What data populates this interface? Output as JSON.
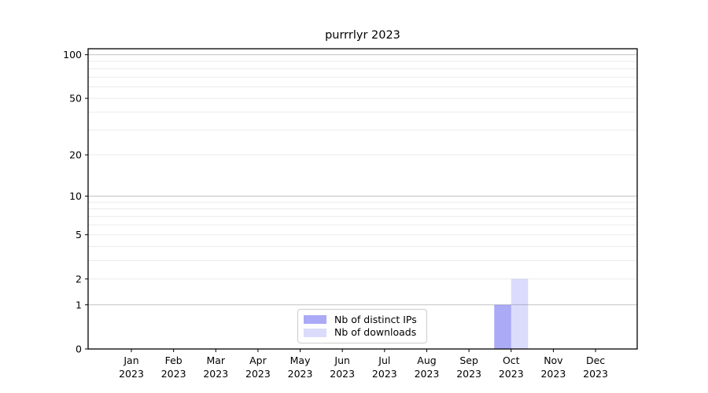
{
  "chart_data": {
    "type": "bar",
    "title": "purrrlyr 2023",
    "scale": "log1p",
    "categories": [
      "Jan",
      "Feb",
      "Mar",
      "Apr",
      "May",
      "Jun",
      "Jul",
      "Aug",
      "Sep",
      "Oct",
      "Nov",
      "Dec"
    ],
    "year_label": "2023",
    "series": [
      {
        "name": "Nb of distinct IPs",
        "color": "rgba(85,85,240,0.5)",
        "values": [
          0,
          0,
          0,
          0,
          0,
          0,
          0,
          0,
          0,
          1,
          0,
          0
        ]
      },
      {
        "name": "Nb of downloads",
        "color": "rgba(85,85,240,0.21)",
        "values": [
          0,
          0,
          0,
          0,
          0,
          0,
          0,
          0,
          0,
          2,
          0,
          0
        ]
      }
    ],
    "y_ticks": [
      0,
      1,
      2,
      5,
      10,
      20,
      50,
      100
    ],
    "ylim": [
      0,
      110
    ],
    "grid": "horizontal",
    "grid_major_values": [
      1,
      10,
      100
    ],
    "grid_minor_values": [
      2,
      3,
      4,
      5,
      6,
      7,
      8,
      9,
      20,
      30,
      40,
      50,
      60,
      70,
      80,
      90
    ],
    "grid_major_color": "#c3c3c3",
    "grid_minor_color": "#ebebeb",
    "axis_color": "#000000",
    "legend_position": "lower-center-inside",
    "legend_border_color": "#cccccc"
  }
}
